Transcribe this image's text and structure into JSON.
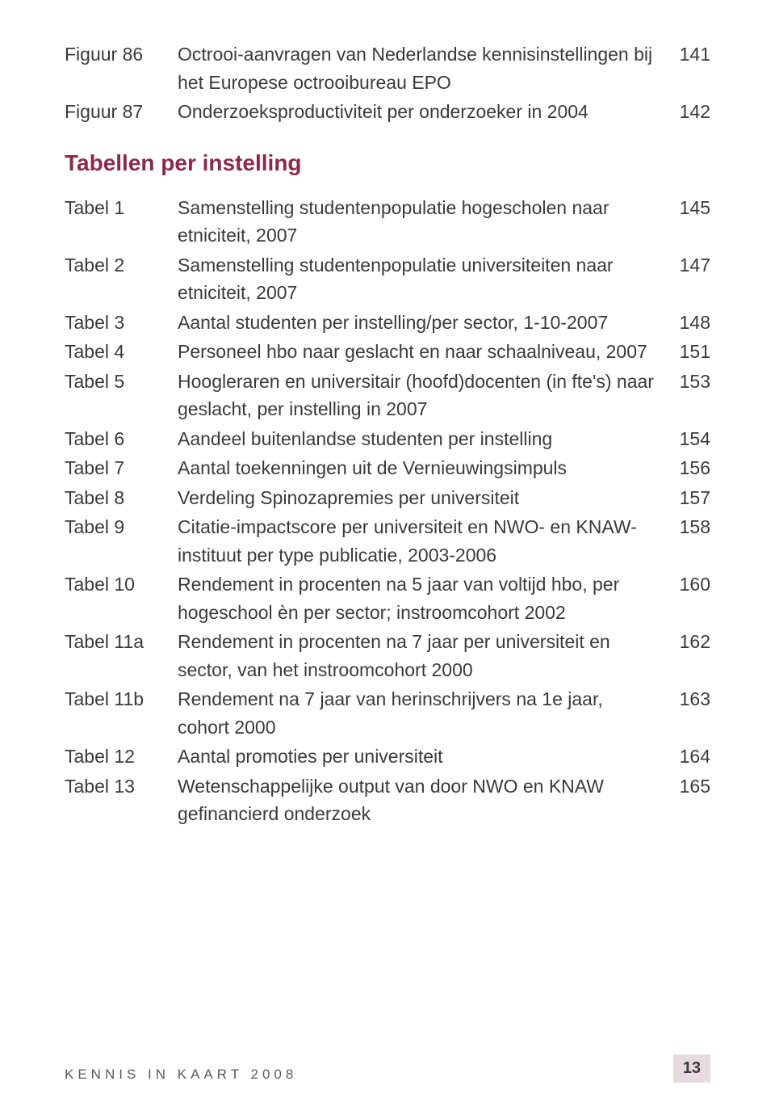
{
  "colors": {
    "text": "#3a3a3a",
    "heading": "#8a2a4a",
    "footer_text": "#5a5a5a",
    "page_box_bg": "#e9d9e0",
    "background": "#ffffff"
  },
  "figures": [
    {
      "label": "Figuur 86",
      "desc": "Octrooi-aanvragen van Nederlandse kennisinstellingen bij het Europese octrooibureau EPO",
      "page": "141"
    },
    {
      "label": "Figuur 87",
      "desc": "Onderzoeksproductiviteit per onderzoeker in 2004",
      "page": "142"
    }
  ],
  "section_heading": "Tabellen per instelling",
  "tables": [
    {
      "label": "Tabel 1",
      "desc": "Samenstelling studentenpopulatie hogescholen naar etniciteit, 2007",
      "page": "145"
    },
    {
      "label": "Tabel 2",
      "desc": "Samenstelling studentenpopulatie universiteiten naar etniciteit, 2007",
      "page": "147"
    },
    {
      "label": "Tabel 3",
      "desc": "Aantal studenten per instelling/per sector, 1-10-2007",
      "page": "148"
    },
    {
      "label": "Tabel 4",
      "desc": "Personeel hbo naar geslacht en naar schaalniveau, 2007",
      "page": "151"
    },
    {
      "label": "Tabel 5",
      "desc": "Hoogleraren en universitair (hoofd)docenten (in fte's) naar geslacht, per instelling in 2007",
      "page": "153"
    },
    {
      "label": "Tabel 6",
      "desc": "Aandeel buitenlandse studenten per instelling",
      "page": "154"
    },
    {
      "label": "Tabel 7",
      "desc": "Aantal toekenningen uit de Vernieuwingsimpuls",
      "page": "156"
    },
    {
      "label": "Tabel 8",
      "desc": "Verdeling Spinozapremies per universiteit",
      "page": "157"
    },
    {
      "label": "Tabel 9",
      "desc": "Citatie-impactscore per universiteit en NWO- en KNAW-instituut per type publicatie, 2003-2006",
      "page": "158"
    },
    {
      "label": "Tabel 10",
      "desc": "Rendement in procenten na 5 jaar van voltijd hbo, per hogeschool èn per sector; instroomcohort 2002",
      "page": "160"
    },
    {
      "label": "Tabel 11a",
      "desc": "Rendement in procenten na 7 jaar per universiteit en sector, van het instroomcohort 2000",
      "page": "162"
    },
    {
      "label": "Tabel 11b",
      "desc": "Rendement na 7 jaar van herinschrijvers na 1e jaar, cohort 2000",
      "page": "163"
    },
    {
      "label": "Tabel 12",
      "desc": "Aantal promoties per universiteit",
      "page": "164"
    },
    {
      "label": "Tabel 13",
      "desc": "Wetenschappelijke output van door NWO en KNAW gefinancierd onderzoek",
      "page": "165"
    }
  ],
  "footer": {
    "title": "KENNIS IN KAART 2008",
    "page_number": "13"
  }
}
